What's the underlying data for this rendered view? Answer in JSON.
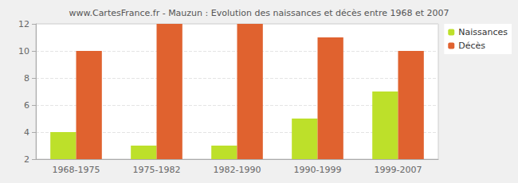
{
  "chart_data": {
    "type": "bar",
    "title": "www.CartesFrance.fr - Mauzun : Evolution des naissances et décès entre 1968 et 2007",
    "categories": [
      "1968-1975",
      "1975-1982",
      "1982-1990",
      "1990-1999",
      "1999-2007"
    ],
    "series": [
      {
        "name": "Naissances",
        "color": "#bde02a",
        "values": [
          4,
          3,
          3,
          5,
          7
        ]
      },
      {
        "name": "Décès",
        "color": "#e0622f",
        "values": [
          10,
          12,
          12,
          11,
          10
        ]
      }
    ],
    "ylim": [
      2,
      12
    ],
    "yticks": [
      2,
      4,
      6,
      8,
      10,
      12
    ],
    "grid": true,
    "legend": "upper right"
  }
}
